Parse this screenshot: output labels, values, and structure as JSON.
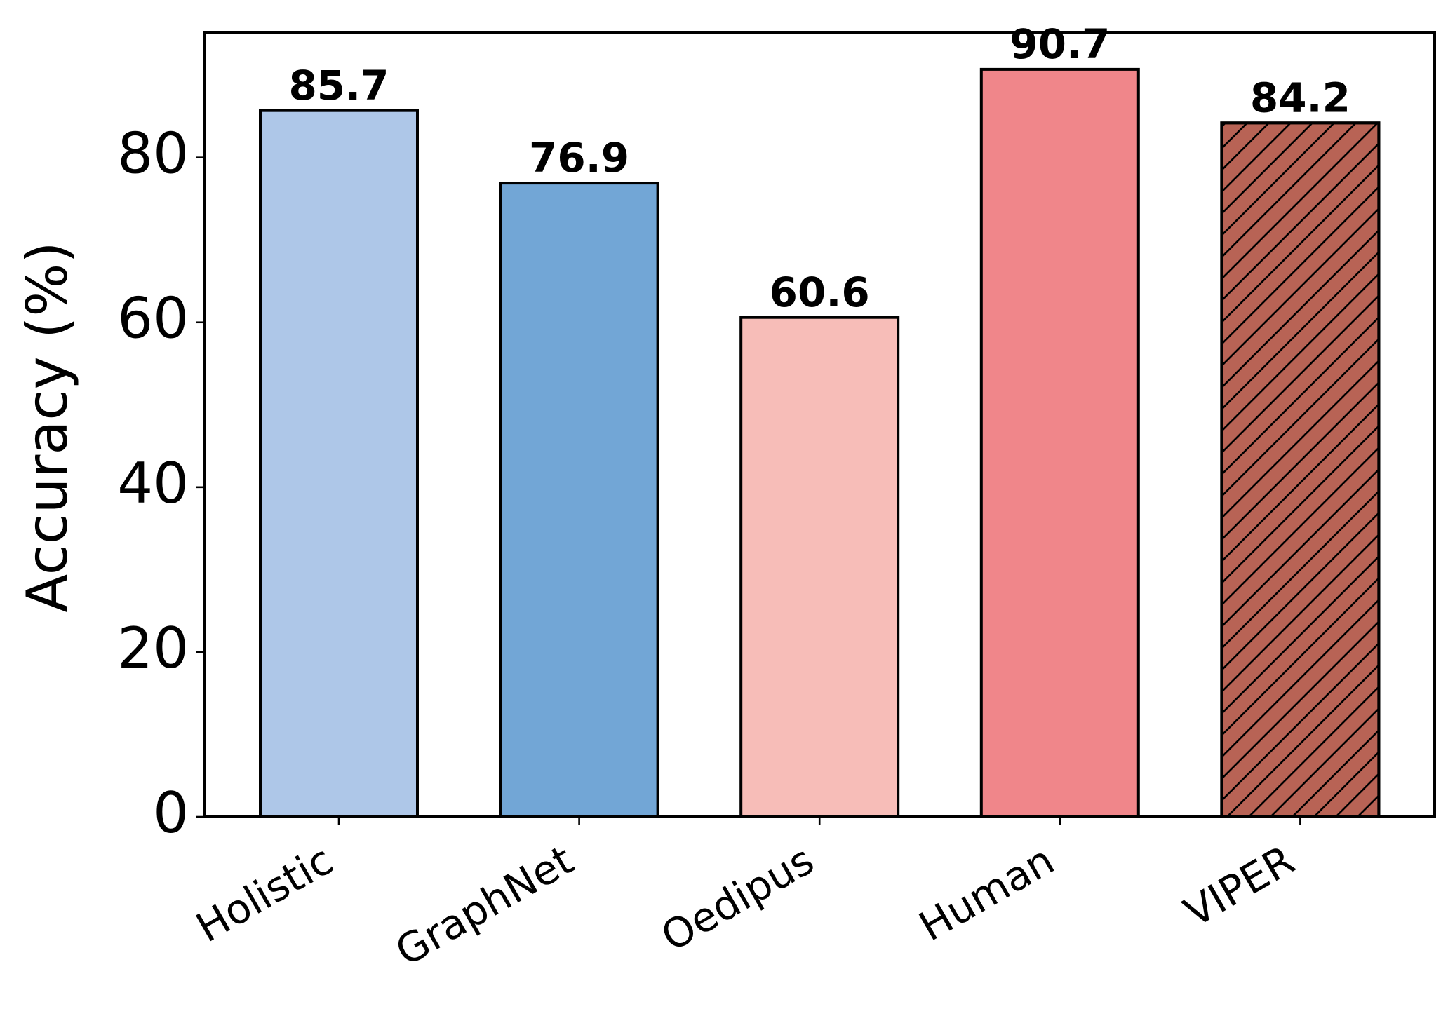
{
  "chart_data": {
    "type": "bar",
    "ylabel": "Accuracy (%)",
    "categories": [
      "Holistic",
      "GraphNet",
      "Oedipus",
      "Human",
      "VIPER"
    ],
    "values": [
      85.7,
      76.9,
      60.6,
      90.7,
      84.2
    ],
    "colors": [
      "#aec7e8",
      "#72a6d6",
      "#f7bdb8",
      "#f0868a",
      "#b86355"
    ],
    "hatches": [
      null,
      null,
      null,
      null,
      "/"
    ],
    "ylim": [
      0,
      95.2
    ],
    "yticks": [
      0,
      20,
      40,
      60,
      80
    ],
    "grid": false
  }
}
